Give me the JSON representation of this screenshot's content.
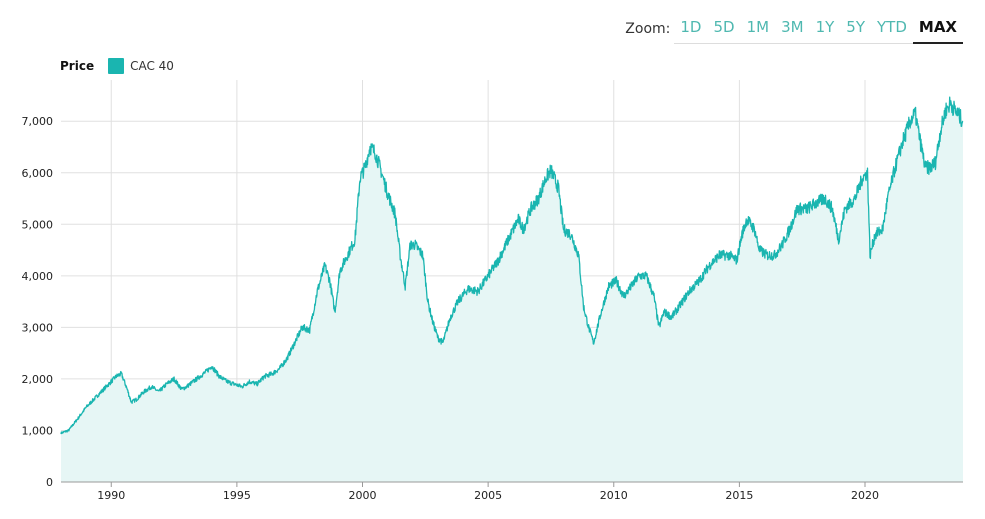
{
  "zoom": {
    "label": "Zoom:",
    "buttons": [
      "1D",
      "5D",
      "1M",
      "3M",
      "1Y",
      "5Y",
      "YTD",
      "MAX"
    ],
    "active": "MAX"
  },
  "legend": {
    "title": "Price",
    "series_name": "CAC 40",
    "color": "#1ab5b0"
  },
  "colors": {
    "line": "#1ab5b0",
    "fill": "#e6f6f5",
    "grid": "#e0e0e0"
  },
  "chart_data": {
    "type": "area",
    "title": "",
    "xlabel": "",
    "ylabel": "",
    "legend_position": "top-left",
    "grid": true,
    "xlim": [
      1988.0,
      2023.9
    ],
    "ylim": [
      0,
      7800
    ],
    "x_ticks": [
      1990,
      1995,
      2000,
      2005,
      2010,
      2015,
      2020
    ],
    "x_tick_labels": [
      "1990",
      "1995",
      "2000",
      "2005",
      "2010",
      "2015",
      "2020"
    ],
    "y_ticks": [
      0,
      1000,
      2000,
      3000,
      4000,
      5000,
      6000,
      7000
    ],
    "y_tick_labels": [
      "0",
      "1,000",
      "2,000",
      "3,000",
      "4,000",
      "5,000",
      "6,000",
      "7,000"
    ],
    "series": [
      {
        "name": "CAC 40",
        "x": [
          1988.0,
          1988.3,
          1988.7,
          1989.0,
          1989.4,
          1989.8,
          1990.2,
          1990.4,
          1990.6,
          1990.8,
          1991.0,
          1991.3,
          1991.6,
          1991.9,
          1992.2,
          1992.5,
          1992.8,
          1993.0,
          1993.4,
          1993.8,
          1994.0,
          1994.3,
          1994.6,
          1994.9,
          1995.2,
          1995.5,
          1995.8,
          1996.1,
          1996.4,
          1996.7,
          1997.0,
          1997.3,
          1997.6,
          1997.9,
          1998.2,
          1998.5,
          1998.7,
          1998.9,
          1999.1,
          1999.4,
          1999.7,
          1999.9,
          2000.1,
          2000.3,
          2000.5,
          2000.7,
          2001.0,
          2001.3,
          2001.5,
          2001.7,
          2001.9,
          2002.1,
          2002.4,
          2002.6,
          2002.8,
          2003.0,
          2003.2,
          2003.5,
          2003.8,
          2004.2,
          2004.6,
          2005.0,
          2005.4,
          2005.8,
          2006.2,
          2006.4,
          2006.7,
          2007.0,
          2007.3,
          2007.5,
          2007.8,
          2008.0,
          2008.3,
          2008.6,
          2008.8,
          2009.0,
          2009.2,
          2009.5,
          2009.8,
          2010.1,
          2010.4,
          2010.7,
          2011.0,
          2011.3,
          2011.6,
          2011.8,
          2012.0,
          2012.3,
          2012.6,
          2013.0,
          2013.4,
          2013.8,
          2014.2,
          2014.6,
          2014.9,
          2015.1,
          2015.3,
          2015.6,
          2015.8,
          2016.1,
          2016.4,
          2016.7,
          2017.0,
          2017.3,
          2017.7,
          2018.0,
          2018.4,
          2018.7,
          2018.95,
          2019.2,
          2019.6,
          2019.9,
          2020.1,
          2020.2,
          2020.4,
          2020.7,
          2020.9,
          2021.2,
          2021.5,
          2021.8,
          2022.0,
          2022.2,
          2022.4,
          2022.6,
          2022.8,
          2023.0,
          2023.2,
          2023.4,
          2023.6,
          2023.9
        ],
        "values": [
          950,
          1000,
          1250,
          1450,
          1650,
          1850,
          2050,
          2100,
          1850,
          1550,
          1600,
          1750,
          1850,
          1750,
          1900,
          2000,
          1800,
          1850,
          2000,
          2150,
          2250,
          2050,
          1950,
          1900,
          1850,
          1950,
          1900,
          2050,
          2100,
          2200,
          2400,
          2700,
          3000,
          2950,
          3700,
          4200,
          3900,
          3300,
          4100,
          4400,
          4700,
          5900,
          6100,
          6500,
          6400,
          6100,
          5600,
          5200,
          4400,
          3800,
          4600,
          4600,
          4400,
          3500,
          3100,
          2800,
          2700,
          3200,
          3500,
          3750,
          3700,
          4000,
          4300,
          4700,
          5100,
          4900,
          5300,
          5500,
          5900,
          6050,
          5700,
          4900,
          4800,
          4400,
          3400,
          3000,
          2700,
          3300,
          3800,
          3900,
          3600,
          3800,
          4000,
          4000,
          3600,
          3000,
          3300,
          3200,
          3400,
          3700,
          3900,
          4200,
          4400,
          4400,
          4300,
          4800,
          5100,
          4900,
          4500,
          4400,
          4400,
          4600,
          4900,
          5300,
          5300,
          5400,
          5500,
          5300,
          4700,
          5300,
          5500,
          5900,
          6000,
          4400,
          4800,
          4900,
          5500,
          6100,
          6600,
          7000,
          7150,
          6600,
          6100,
          6100,
          6200,
          6800,
          7200,
          7350,
          7200,
          7000
        ]
      }
    ]
  }
}
